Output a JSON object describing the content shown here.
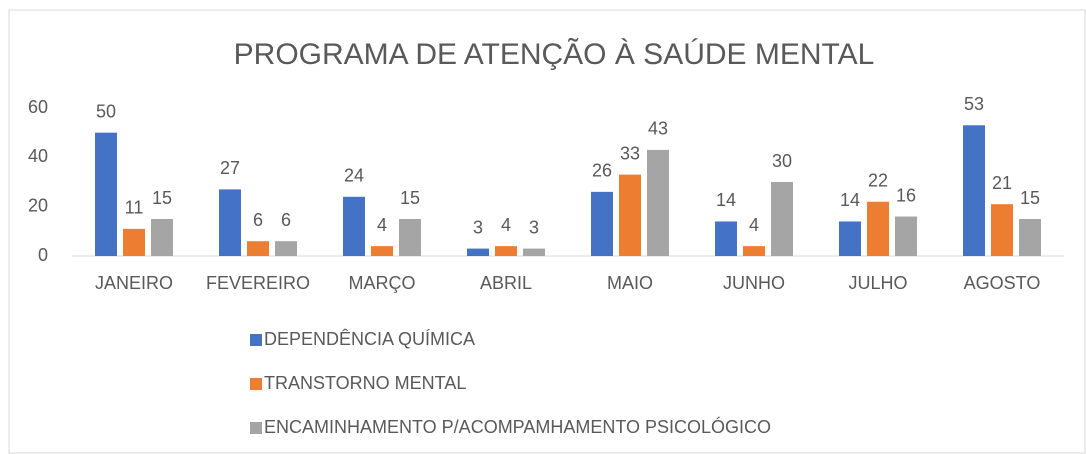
{
  "chart_data": {
    "type": "bar",
    "title": "PROGRAMA DE ATENÇÃO À SAÚDE MENTAL",
    "categories": [
      "JANEIRO",
      "FEVEREIRO",
      "MARÇO",
      "ABRIL",
      "MAIO",
      "JUNHO",
      "JULHO",
      "AGOSTO"
    ],
    "series": [
      {
        "name": "DEPENDÊNCIA QUÍMICA",
        "color": "#4472c4",
        "values": [
          50,
          27,
          24,
          3,
          26,
          14,
          14,
          53
        ]
      },
      {
        "name": "TRANSTORNO MENTAL",
        "color": "#ed7d31",
        "values": [
          11,
          6,
          4,
          4,
          33,
          4,
          22,
          21
        ]
      },
      {
        "name": "ENCAMINHAMENTO P/ACOMPAMHAMENTO PSICOLÓGICO",
        "color": "#a5a5a5",
        "values": [
          15,
          6,
          15,
          3,
          43,
          30,
          16,
          15
        ]
      }
    ],
    "ylim": [
      0,
      60
    ],
    "yticks": [
      0,
      20,
      40,
      60
    ],
    "grid": false,
    "legend": "bottom"
  }
}
